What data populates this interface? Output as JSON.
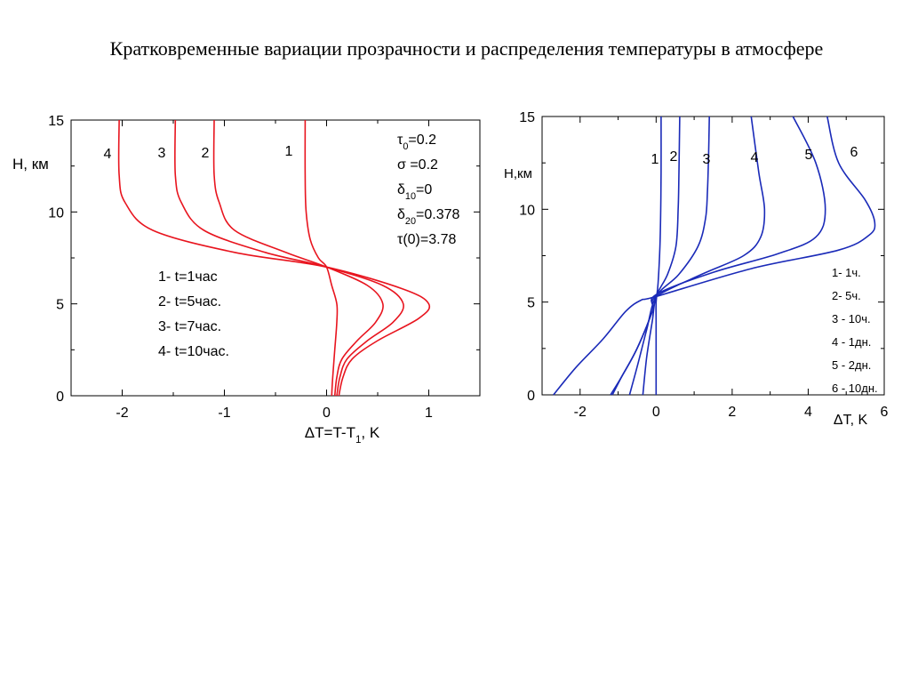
{
  "slide_title": "Кратковременные вариации прозрачности и распределения температуры  в атмосфере",
  "colors": {
    "left_curves": "#e8141e",
    "right_curves": "#1a2ab8",
    "axes": "#000000"
  },
  "chart_data": [
    {
      "type": "line",
      "orientation": "profile (x = ΔT, y = height)",
      "xlabel": "ΔT=T-T1, K",
      "ylabel": "H, км",
      "xlim": [
        -2.5,
        1.5
      ],
      "ylim": [
        0,
        15
      ],
      "x_ticks": [
        -2,
        -1,
        0,
        1
      ],
      "y_ticks": [
        0,
        5,
        10,
        15
      ],
      "params": [
        "τ0=0.2",
        "σ =0.2",
        "δ10=0",
        "δ20=0.378",
        "τ(0)=3.78"
      ],
      "legend": [
        "1- t=1час",
        "2- t=5час.",
        "3- t=7час.",
        "4- t=10час."
      ],
      "series": [
        {
          "name": "1",
          "points": [
            [
              0.05,
              0
            ],
            [
              0.06,
              1
            ],
            [
              0.08,
              2.5
            ],
            [
              0.1,
              4
            ],
            [
              0.1,
              5
            ],
            [
              0.05,
              6
            ],
            [
              0,
              7
            ],
            [
              -0.08,
              7.5
            ],
            [
              -0.16,
              8.5
            ],
            [
              -0.2,
              10
            ],
            [
              -0.21,
              12
            ],
            [
              -0.21,
              15
            ]
          ]
        },
        {
          "name": "2",
          "points": [
            [
              0.08,
              0
            ],
            [
              0.1,
              1
            ],
            [
              0.15,
              2
            ],
            [
              0.3,
              3
            ],
            [
              0.48,
              4
            ],
            [
              0.55,
              5
            ],
            [
              0.4,
              6
            ],
            [
              0,
              7
            ],
            [
              -0.4,
              7.8
            ],
            [
              -0.9,
              9
            ],
            [
              -1.05,
              10.5
            ],
            [
              -1.1,
              12
            ],
            [
              -1.1,
              15
            ]
          ]
        },
        {
          "name": "3",
          "points": [
            [
              0.1,
              0
            ],
            [
              0.13,
              1
            ],
            [
              0.2,
              2
            ],
            [
              0.4,
              3
            ],
            [
              0.65,
              4
            ],
            [
              0.75,
              5
            ],
            [
              0.55,
              6
            ],
            [
              0,
              7
            ],
            [
              -0.6,
              7.8
            ],
            [
              -1.2,
              9
            ],
            [
              -1.42,
              10.5
            ],
            [
              -1.48,
              12
            ],
            [
              -1.48,
              15
            ]
          ]
        },
        {
          "name": "4",
          "points": [
            [
              0.12,
              0
            ],
            [
              0.16,
              1
            ],
            [
              0.25,
              2
            ],
            [
              0.5,
              3
            ],
            [
              0.9,
              4.2
            ],
            [
              1.0,
              5
            ],
            [
              0.75,
              5.8
            ],
            [
              0,
              7
            ],
            [
              -0.9,
              7.8
            ],
            [
              -1.7,
              9
            ],
            [
              -1.97,
              10.5
            ],
            [
              -2.03,
              12
            ],
            [
              -2.03,
              15
            ]
          ]
        }
      ]
    },
    {
      "type": "line",
      "orientation": "profile (x = ΔT, y = height)",
      "xlabel": "ΔT, K",
      "ylabel": "H,км",
      "xlim": [
        -3,
        6
      ],
      "ylim": [
        0,
        15
      ],
      "x_ticks": [
        -2,
        0,
        2,
        4,
        6
      ],
      "y_ticks": [
        0,
        5,
        10,
        15
      ],
      "legend": [
        "1- 1ч.",
        "2- 5ч.",
        "3 - 10ч.",
        "4 - 1дн.",
        "5 - 2дн.",
        "6 - 10дн."
      ],
      "series": [
        {
          "name": "1",
          "points": [
            [
              0,
              0
            ],
            [
              0,
              2
            ],
            [
              0,
              4
            ],
            [
              0,
              5
            ],
            [
              0.05,
              6
            ],
            [
              0.1,
              8
            ],
            [
              0.12,
              10
            ],
            [
              0.13,
              12
            ],
            [
              0.13,
              15
            ]
          ]
        },
        {
          "name": "2",
          "points": [
            [
              -0.35,
              0
            ],
            [
              -0.25,
              2
            ],
            [
              -0.1,
              4
            ],
            [
              0,
              5.3
            ],
            [
              0.3,
              6.5
            ],
            [
              0.52,
              8
            ],
            [
              0.58,
              10
            ],
            [
              0.6,
              12
            ],
            [
              0.62,
              15
            ]
          ]
        },
        {
          "name": "3",
          "points": [
            [
              -0.7,
              0
            ],
            [
              -0.5,
              1.5
            ],
            [
              -0.25,
              3.5
            ],
            [
              0,
              5.3
            ],
            [
              0.6,
              6.5
            ],
            [
              1.1,
              8
            ],
            [
              1.3,
              9.5
            ],
            [
              1.35,
              11
            ],
            [
              1.38,
              13
            ],
            [
              1.4,
              15
            ]
          ]
        },
        {
          "name": "4",
          "points": [
            [
              -1.15,
              0
            ],
            [
              -0.9,
              1
            ],
            [
              -0.5,
              2.5
            ],
            [
              -0.1,
              4.5
            ],
            [
              0,
              5.3
            ],
            [
              1.2,
              6.5
            ],
            [
              2.3,
              7.5
            ],
            [
              2.75,
              8.5
            ],
            [
              2.85,
              10
            ],
            [
              2.7,
              12
            ],
            [
              2.5,
              15
            ]
          ]
        },
        {
          "name": "5",
          "points": [
            [
              -1.2,
              0
            ],
            [
              -0.9,
              1
            ],
            [
              -0.5,
              2.5
            ],
            [
              -0.1,
              4.5
            ],
            [
              0,
              5.4
            ],
            [
              1.5,
              6.6
            ],
            [
              3.2,
              7.6
            ],
            [
              4.2,
              8.5
            ],
            [
              4.45,
              10
            ],
            [
              4.2,
              12.5
            ],
            [
              3.6,
              15
            ]
          ]
        },
        {
          "name": "6",
          "points": [
            [
              -2.7,
              0
            ],
            [
              -2.1,
              1.5
            ],
            [
              -1.4,
              3
            ],
            [
              -0.8,
              4.5
            ],
            [
              -0.4,
              5.1
            ],
            [
              0,
              5.3
            ],
            [
              2.5,
              6.8
            ],
            [
              4.8,
              7.8
            ],
            [
              5.6,
              8.6
            ],
            [
              5.75,
              9.3
            ],
            [
              5.5,
              10.5
            ],
            [
              4.8,
              12.5
            ],
            [
              4.5,
              15
            ]
          ]
        }
      ]
    }
  ]
}
